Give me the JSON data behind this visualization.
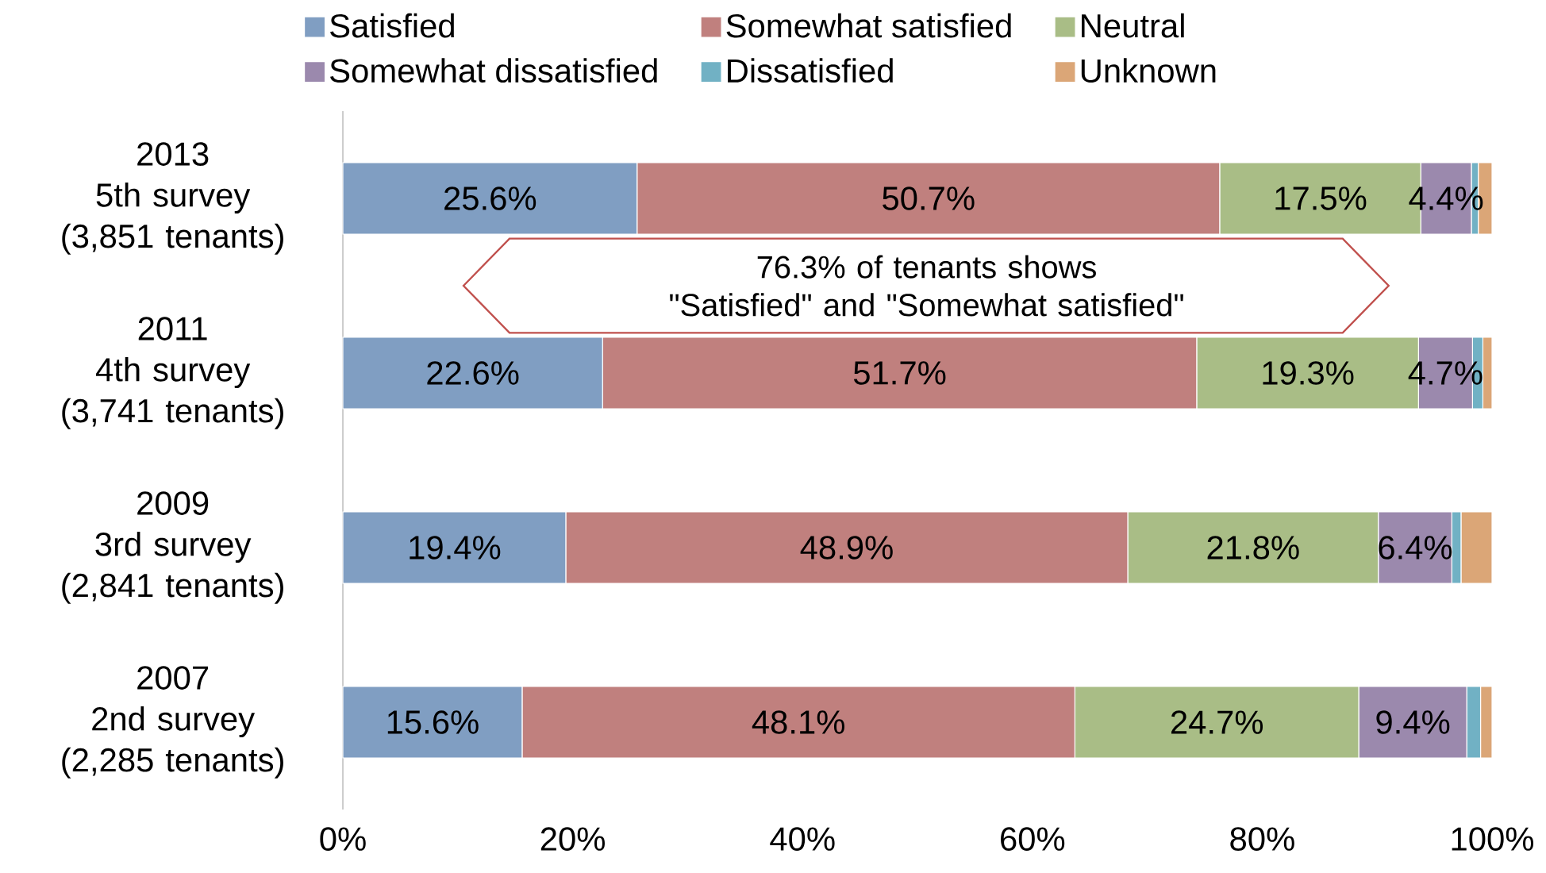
{
  "chart_data": {
    "type": "bar",
    "orientation": "horizontal",
    "stacked": true,
    "categories": [
      "2013\n5th survey\n(3,851 tenants)",
      "2011\n4th survey\n(3,741 tenants)",
      "2009\n3rd survey\n(2,841 tenants)",
      "2007\n2nd survey\n(2,285 tenants)"
    ],
    "series": [
      {
        "name": "Satisfied",
        "color": "#809ec2",
        "values": [
          25.6,
          22.6,
          19.4,
          15.6
        ],
        "value_labels": [
          "25.6%",
          "22.6%",
          "19.4%",
          "15.6%"
        ]
      },
      {
        "name": "Somewhat satisfied",
        "color": "#c0807e",
        "values": [
          50.7,
          51.7,
          48.9,
          48.1
        ],
        "value_labels": [
          "50.7%",
          "51.7%",
          "48.9%",
          "48.1%"
        ]
      },
      {
        "name": "Neutral",
        "color": "#a9bd86",
        "values": [
          17.5,
          19.3,
          21.8,
          24.7
        ],
        "value_labels": [
          "17.5%",
          "19.3%",
          "21.8%",
          "24.7%"
        ]
      },
      {
        "name": "Somewhat dissatisfied",
        "color": "#9b89ad",
        "values": [
          4.4,
          4.7,
          6.4,
          9.4
        ],
        "value_labels": [
          "4.4%",
          "4.7%",
          "6.4%",
          "9.4%"
        ]
      },
      {
        "name": "Dissatisfied",
        "color": "#71b1c4",
        "values": [
          0.6,
          0.9,
          0.8,
          1.2
        ],
        "value_labels": [
          null,
          null,
          null,
          null
        ]
      },
      {
        "name": "Unknown",
        "color": "#dba677",
        "values": [
          1.2,
          0.8,
          2.7,
          1.0
        ],
        "value_labels": [
          null,
          null,
          null,
          null
        ]
      }
    ],
    "xlim": [
      0,
      100
    ],
    "xticks": [
      {
        "value": 0,
        "label": "0%"
      },
      {
        "value": 20,
        "label": "20%"
      },
      {
        "value": 40,
        "label": "40%"
      },
      {
        "value": 60,
        "label": "60%"
      },
      {
        "value": 80,
        "label": "80%"
      },
      {
        "value": 100,
        "label": "100%"
      }
    ],
    "legend": "top",
    "annotations": [
      "76.3% of tenants shows\n\"Satisfied\" and \"Somewhat satisfied\""
    ]
  }
}
